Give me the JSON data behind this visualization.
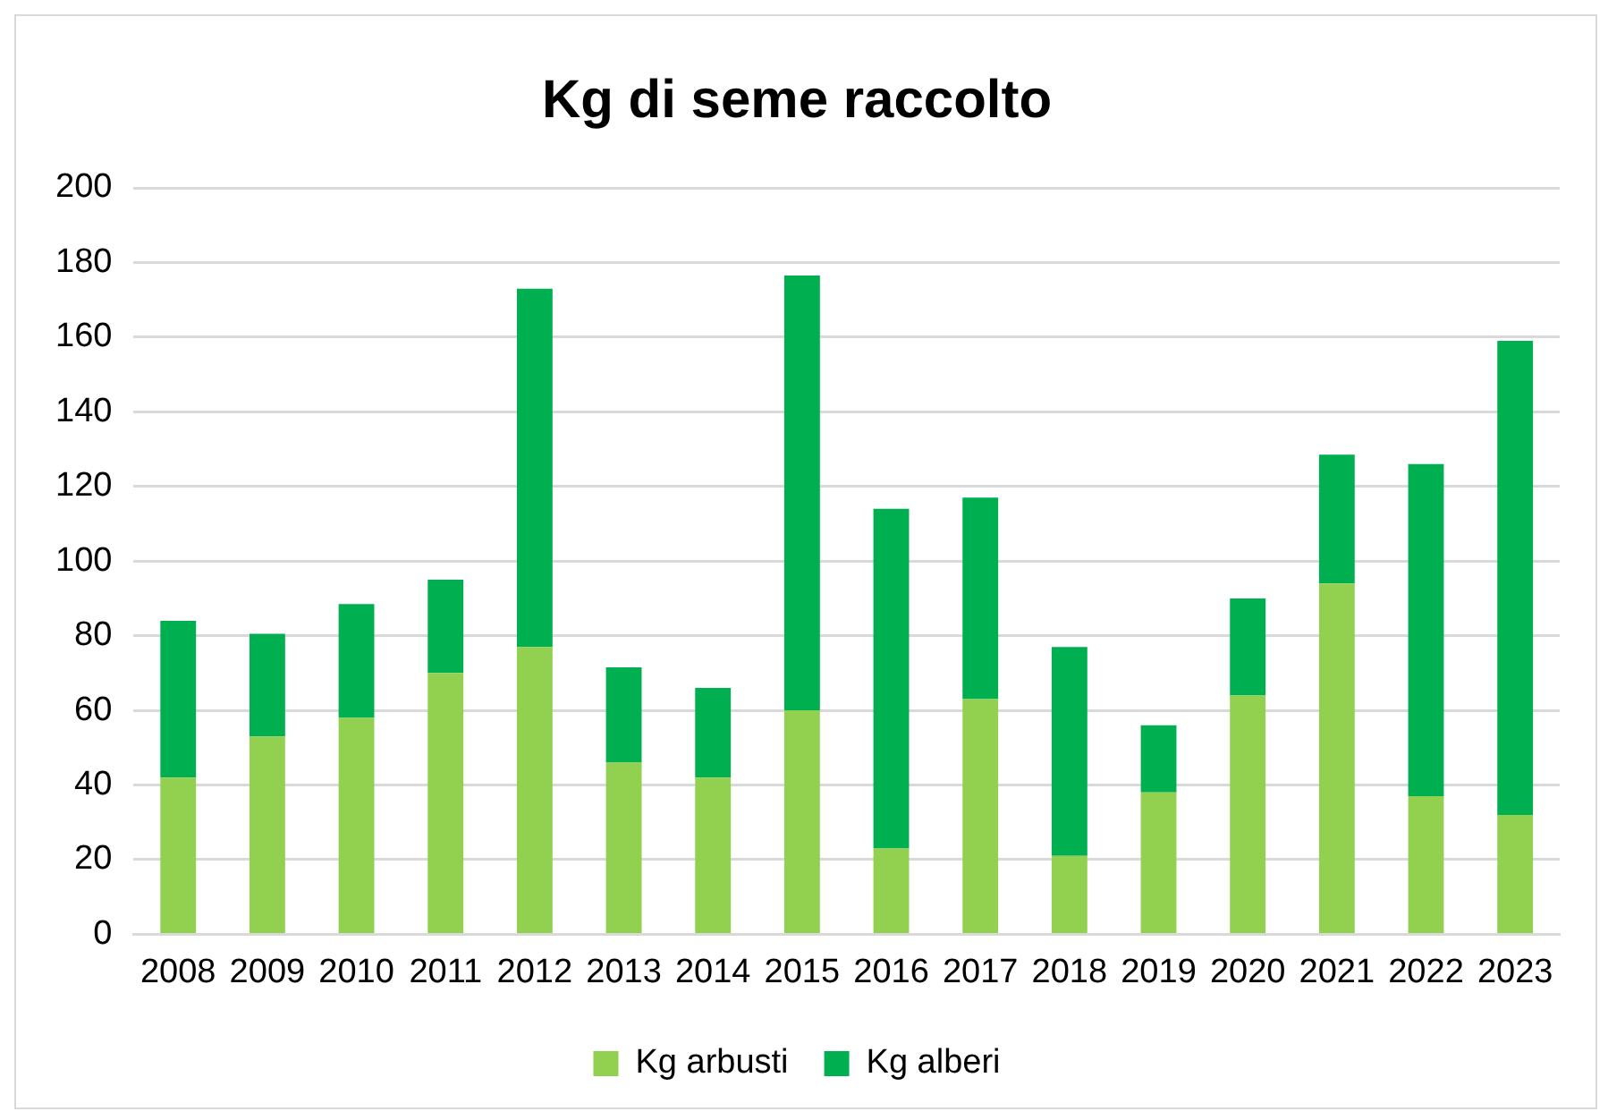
{
  "chart_data": {
    "type": "bar",
    "title": "Kg di seme raccolto",
    "stacked": true,
    "legend": "bottom",
    "grid": "y",
    "categories": [
      "2008",
      "2009",
      "2010",
      "2011",
      "2012",
      "2013",
      "2014",
      "2015",
      "2016",
      "2017",
      "2018",
      "2019",
      "2020",
      "2021",
      "2022",
      "2023"
    ],
    "ylim": [
      0,
      200
    ],
    "yticks": [
      0,
      20,
      40,
      60,
      80,
      100,
      120,
      140,
      160,
      180,
      200
    ],
    "series": [
      {
        "name": "Kg arbusti",
        "color": "#92d050",
        "values": [
          42,
          53,
          58,
          70,
          77,
          46,
          42,
          60,
          23,
          63,
          21,
          38,
          64,
          94,
          37,
          32
        ]
      },
      {
        "name": "Kg alberi",
        "color": "#00b050",
        "values": [
          42,
          27.5,
          30.5,
          25,
          96,
          25.5,
          24,
          116.5,
          91,
          54,
          56,
          18,
          26,
          34.5,
          89,
          127
        ]
      }
    ]
  }
}
